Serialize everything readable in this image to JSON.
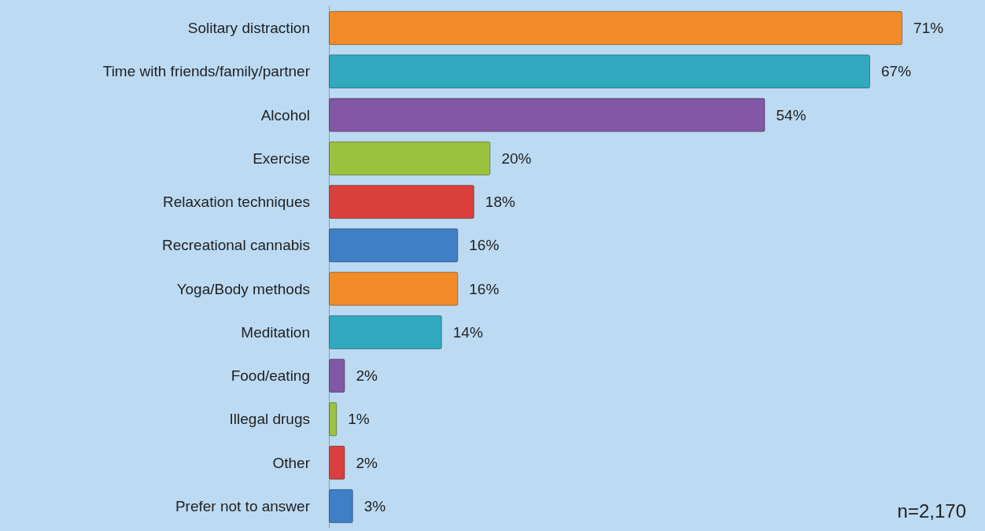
{
  "chart_data": {
    "type": "bar",
    "orientation": "horizontal",
    "categories": [
      "Solitary distraction",
      "Time with friends/family/partner",
      "Alcohol",
      "Exercise",
      "Relaxation techniques",
      "Recreational cannabis",
      "Yoga/Body methods",
      "Meditation",
      "Food/eating",
      "Illegal drugs",
      "Other",
      "Prefer not to answer"
    ],
    "values": [
      71,
      67,
      54,
      20,
      18,
      16,
      16,
      14,
      2,
      1,
      2,
      3
    ],
    "value_labels": [
      "71%",
      "67%",
      "54%",
      "20%",
      "18%",
      "16%",
      "16%",
      "14%",
      "2%",
      "1%",
      "2%",
      "3%"
    ],
    "colors": [
      "#f28c28",
      "#31a9bf",
      "#8257a6",
      "#9bc23c",
      "#d9403c",
      "#3f7fc6",
      "#f28c28",
      "#31a9bf",
      "#8257a6",
      "#9bc23c",
      "#d9403c",
      "#3f7fc6"
    ],
    "annotations": [
      "n=2,170"
    ],
    "grid": false
  }
}
